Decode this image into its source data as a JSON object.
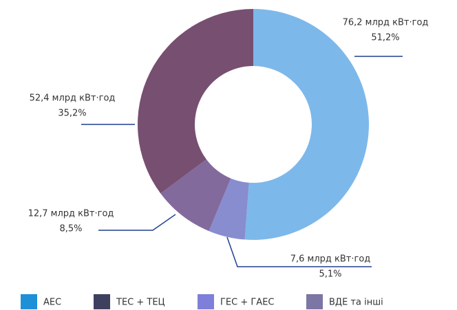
{
  "chart_data": {
    "type": "donut",
    "categories": [
      "АЕС",
      "ГЕС + ГАЕС",
      "ВДЕ та інші",
      "ТЕС + ТЕЦ"
    ],
    "values": [
      76.2,
      7.6,
      12.7,
      52.4
    ],
    "value_labels": [
      "76,2 млрд кВт·год",
      "7,6 млрд кВт·год",
      "12,7 млрд кВт·год",
      "52,4 млрд кВт·год"
    ],
    "percents": [
      51.2,
      5.1,
      8.5,
      35.2
    ],
    "percent_labels": [
      "51,2%",
      "5,1%",
      "8,5%",
      "35,2%"
    ],
    "colors": [
      "#7db8ea",
      "#878dcf",
      "#836a9c",
      "#774f70"
    ],
    "legend": [
      {
        "name": "АЕС",
        "color": "#1e90d8"
      },
      {
        "name": "ТЕС + ТЕЦ",
        "color": "#3e405f"
      },
      {
        "name": "ГЕС + ГАЕС",
        "color": "#7e7fd9"
      },
      {
        "name": "ВДЕ та інші",
        "color": "#7b76a4"
      }
    ]
  }
}
